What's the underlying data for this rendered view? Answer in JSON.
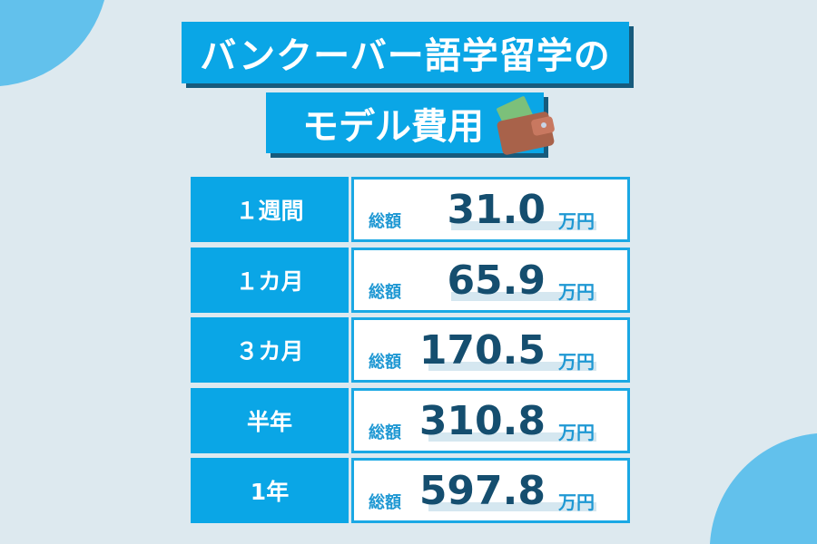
{
  "title_line1": "バンクーバー語学留学の",
  "title_line2": "モデル費用",
  "wallet_icon": "wallet-icon",
  "colors": {
    "accent": "#0aa6e6",
    "shadow": "#175b7c",
    "number": "#154e6f",
    "background": "#dde9ef"
  },
  "rows": [
    {
      "period": "１週間",
      "label": "総額",
      "amount": "31.0",
      "unit": "万円"
    },
    {
      "period": "１カ月",
      "label": "総額",
      "amount": "65.9",
      "unit": "万円"
    },
    {
      "period": "３カ月",
      "label": "総額",
      "amount": "170.5",
      "unit": "万円"
    },
    {
      "period": "半年",
      "label": "総額",
      "amount": "310.8",
      "unit": "万円"
    },
    {
      "period": "1年",
      "label": "総額",
      "amount": "597.8",
      "unit": "万円"
    }
  ]
}
